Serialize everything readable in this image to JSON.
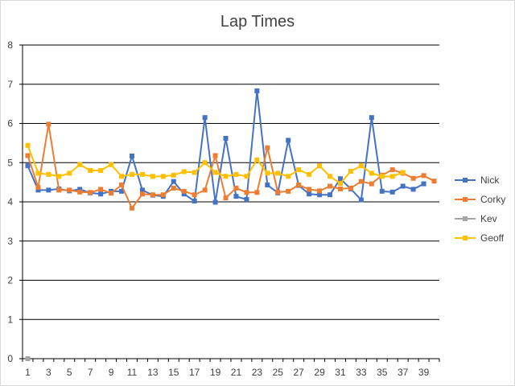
{
  "chart_data": {
    "type": "line",
    "title": "Lap Times",
    "xlabel": "",
    "ylabel": "",
    "ylim": [
      0,
      8
    ],
    "yticks": [
      "0",
      "1",
      "2",
      "3",
      "4",
      "5",
      "6",
      "7",
      "8"
    ],
    "x": [
      1,
      2,
      3,
      4,
      5,
      6,
      7,
      8,
      9,
      10,
      11,
      12,
      13,
      14,
      15,
      16,
      17,
      18,
      19,
      20,
      21,
      22,
      23,
      24,
      25,
      26,
      27,
      28,
      29,
      30,
      31,
      32,
      33,
      34,
      35,
      36,
      37,
      38,
      39,
      40
    ],
    "xtick_labels": [
      "1",
      "3",
      "5",
      "7",
      "9",
      "11",
      "13",
      "15",
      "17",
      "19",
      "21",
      "23",
      "25",
      "27",
      "29",
      "31",
      "33",
      "35",
      "37",
      "39"
    ],
    "grid": true,
    "legend_position": "right",
    "series": [
      {
        "name": "Nick",
        "color": "#4472c4",
        "values": [
          4.92,
          4.3,
          4.3,
          4.33,
          4.28,
          4.32,
          4.23,
          4.2,
          4.27,
          4.27,
          5.17,
          4.3,
          4.17,
          4.14,
          4.52,
          4.2,
          4.02,
          6.15,
          3.99,
          5.62,
          4.14,
          4.06,
          6.83,
          4.43,
          4.23,
          5.57,
          4.42,
          4.2,
          4.18,
          4.18,
          4.59,
          4.33,
          4.05,
          6.15,
          4.27,
          4.25,
          4.4,
          4.32,
          4.46,
          null
        ]
      },
      {
        "name": "Corky",
        "color": "#ed7d31",
        "values": [
          5.18,
          4.37,
          5.98,
          4.3,
          4.3,
          4.25,
          4.24,
          4.32,
          4.22,
          4.43,
          3.84,
          4.2,
          4.18,
          4.18,
          4.35,
          4.27,
          4.18,
          4.3,
          5.18,
          4.1,
          4.35,
          4.24,
          4.24,
          5.38,
          4.25,
          4.27,
          4.43,
          4.32,
          4.28,
          4.4,
          4.33,
          4.35,
          4.52,
          4.46,
          4.68,
          4.82,
          4.73,
          4.6,
          4.67,
          4.53
        ]
      },
      {
        "name": "Kev",
        "color": "#a5a5a5",
        "values": [
          0,
          null,
          null,
          null,
          null,
          null,
          null,
          null,
          null,
          null,
          null,
          null,
          null,
          null,
          null,
          null,
          null,
          null,
          null,
          null,
          null,
          null,
          null,
          null,
          null,
          null,
          null,
          null,
          null,
          null,
          null,
          null,
          null,
          null,
          null,
          null,
          null,
          null,
          null,
          null
        ]
      },
      {
        "name": "Geoff",
        "color": "#ffc000",
        "values": [
          5.44,
          4.73,
          4.7,
          4.65,
          4.73,
          4.95,
          4.8,
          4.8,
          4.95,
          4.65,
          4.7,
          4.7,
          4.65,
          4.65,
          4.68,
          4.77,
          4.75,
          5.0,
          4.75,
          4.65,
          4.7,
          4.65,
          5.07,
          4.73,
          4.73,
          4.65,
          4.82,
          4.7,
          4.92,
          4.65,
          4.47,
          4.78,
          4.92,
          4.73,
          4.65,
          4.65,
          4.75,
          null,
          null,
          null
        ]
      }
    ]
  }
}
